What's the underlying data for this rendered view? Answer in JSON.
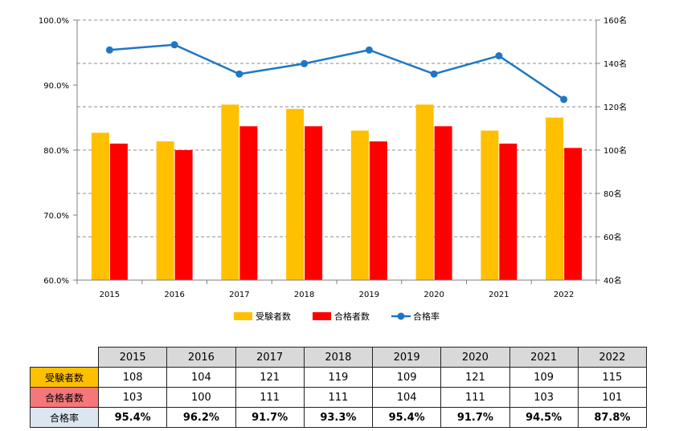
{
  "chart_data": {
    "type": "bar",
    "categories": [
      "2015",
      "2016",
      "2017",
      "2018",
      "2019",
      "2020",
      "2021",
      "2022"
    ],
    "series": [
      {
        "name": "受験者数",
        "kind": "bar",
        "axis": "right",
        "color": "#ffc000",
        "values": [
          108,
          104,
          121,
          119,
          109,
          121,
          109,
          115
        ]
      },
      {
        "name": "合格者数",
        "kind": "bar",
        "axis": "right",
        "color": "#ff0000",
        "values": [
          103,
          100,
          111,
          111,
          104,
          111,
          103,
          101
        ]
      },
      {
        "name": "合格率",
        "kind": "line",
        "axis": "left",
        "color": "#1f77c4",
        "values": [
          95.4,
          96.2,
          91.7,
          93.3,
          95.4,
          91.7,
          94.5,
          87.8
        ]
      }
    ],
    "left_axis": {
      "ylim": [
        60,
        100
      ],
      "ticks": [
        "60.0%",
        "70.0%",
        "80.0%",
        "90.0%",
        "100.0%"
      ]
    },
    "right_axis": {
      "ylim": [
        40,
        160
      ],
      "ticks": [
        "40名",
        "60名",
        "80名",
        "100名",
        "120名",
        "140名",
        "160名"
      ]
    },
    "grid": true,
    "grid_style": "dashed",
    "legend_position": "bottom"
  },
  "table": {
    "years": [
      "2015",
      "2016",
      "2017",
      "2018",
      "2019",
      "2020",
      "2021",
      "2022"
    ],
    "rows": [
      {
        "label": "受験者数",
        "cells": [
          "108",
          "104",
          "121",
          "119",
          "109",
          "121",
          "109",
          "115"
        ]
      },
      {
        "label": "合格者数",
        "cells": [
          "103",
          "100",
          "111",
          "111",
          "104",
          "111",
          "103",
          "101"
        ]
      },
      {
        "label": "合格率",
        "cells": [
          "95.4%",
          "96.2%",
          "91.7%",
          "93.3%",
          "95.4%",
          "91.7%",
          "94.5%",
          "87.8%"
        ]
      }
    ]
  }
}
